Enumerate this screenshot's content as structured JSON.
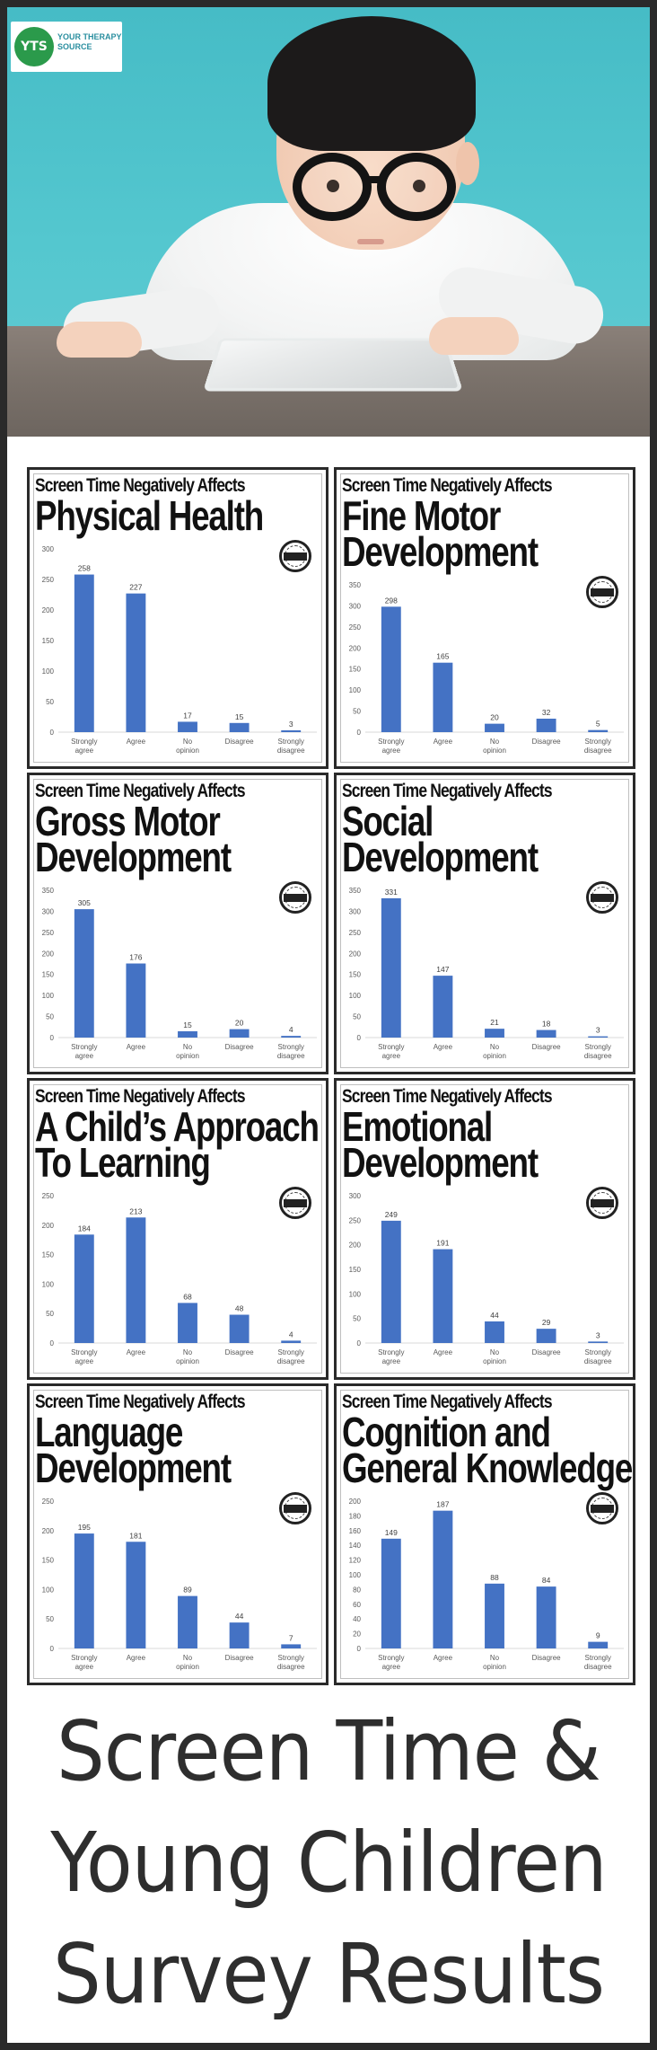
{
  "logo": {
    "initials": "YTS",
    "text": "YOUR THERAPY SOURCE"
  },
  "colors": {
    "bar": "#4472c4",
    "frame": "#2a2a2a",
    "logo_green": "#2b9a4b",
    "background_teal": "#54c7cf"
  },
  "footer": {
    "line1": "Screen Time &",
    "line2": "Young Children",
    "line3": "Survey Results"
  },
  "chart_data": [
    {
      "type": "bar",
      "kicker": "Screen Time Negatively Affects",
      "title_lines": [
        "Physical Health"
      ],
      "categories": [
        "Strongly agree",
        "Agree",
        "No opinion",
        "Disagree",
        "Strongly disagree"
      ],
      "values": [
        258,
        227,
        17,
        15,
        3
      ],
      "yticks": [
        0,
        50,
        100,
        150,
        200,
        250,
        300
      ],
      "ylim": [
        0,
        300
      ],
      "grid": false
    },
    {
      "type": "bar",
      "kicker": "Screen Time Negatively Affects",
      "title_lines": [
        "Fine Motor",
        "Development"
      ],
      "categories": [
        "Strongly agree",
        "Agree",
        "No opinion",
        "Disagree",
        "Strongly disagree"
      ],
      "values": [
        298,
        165,
        20,
        32,
        5
      ],
      "yticks": [
        0,
        50,
        100,
        150,
        200,
        250,
        300,
        350
      ],
      "ylim": [
        0,
        350
      ],
      "grid": false
    },
    {
      "type": "bar",
      "kicker": "Screen Time Negatively Affects",
      "title_lines": [
        "Gross Motor",
        "Development"
      ],
      "categories": [
        "Strongly agree",
        "Agree",
        "No opinion",
        "Disagree",
        "Strongly disagree"
      ],
      "values": [
        305,
        176,
        15,
        20,
        4
      ],
      "yticks": [
        0,
        50,
        100,
        150,
        200,
        250,
        300,
        350
      ],
      "ylim": [
        0,
        350
      ],
      "grid": false
    },
    {
      "type": "bar",
      "kicker": "Screen Time Negatively Affects",
      "title_lines": [
        "Social",
        "Development"
      ],
      "categories": [
        "Strongly agree",
        "Agree",
        "No opinion",
        "Disagree",
        "Strongly disagree"
      ],
      "values": [
        331,
        147,
        21,
        18,
        3
      ],
      "yticks": [
        0,
        50,
        100,
        150,
        200,
        250,
        300,
        350
      ],
      "ylim": [
        0,
        350
      ],
      "grid": false
    },
    {
      "type": "bar",
      "kicker": "Screen Time Negatively Affects",
      "title_lines": [
        "A Child’s Approach",
        "To Learning"
      ],
      "categories": [
        "Strongly agree",
        "Agree",
        "No opinion",
        "Disagree",
        "Strongly disagree"
      ],
      "values": [
        184,
        213,
        68,
        48,
        4
      ],
      "yticks": [
        0,
        50,
        100,
        150,
        200,
        250
      ],
      "ylim": [
        0,
        250
      ],
      "grid": false
    },
    {
      "type": "bar",
      "kicker": "Screen Time Negatively Affects",
      "title_lines": [
        "Emotional",
        "Development"
      ],
      "categories": [
        "Strongly agree",
        "Agree",
        "No opinion",
        "Disagree",
        "Strongly disagree"
      ],
      "values": [
        249,
        191,
        44,
        29,
        3
      ],
      "yticks": [
        0,
        50,
        100,
        150,
        200,
        250,
        300
      ],
      "ylim": [
        0,
        300
      ],
      "grid": false
    },
    {
      "type": "bar",
      "kicker": "Screen Time Negatively Affects",
      "title_lines": [
        "Language",
        "Development"
      ],
      "categories": [
        "Strongly agree",
        "Agree",
        "No opinion",
        "Disagree",
        "Strongly disagree"
      ],
      "values": [
        195,
        181,
        89,
        44,
        7
      ],
      "yticks": [
        0,
        50,
        100,
        150,
        200,
        250
      ],
      "ylim": [
        0,
        250
      ],
      "grid": false
    },
    {
      "type": "bar",
      "kicker": "Screen Time Negatively Affects",
      "title_lines": [
        "Cognition and",
        "General Knowledge"
      ],
      "categories": [
        "Strongly agree",
        "Agree",
        "No opinion",
        "Disagree",
        "Strongly disagree"
      ],
      "values": [
        149,
        187,
        88,
        84,
        9
      ],
      "yticks": [
        0,
        20,
        40,
        60,
        80,
        100,
        120,
        140,
        160,
        180,
        200
      ],
      "ylim": [
        0,
        200
      ],
      "grid": false
    }
  ]
}
